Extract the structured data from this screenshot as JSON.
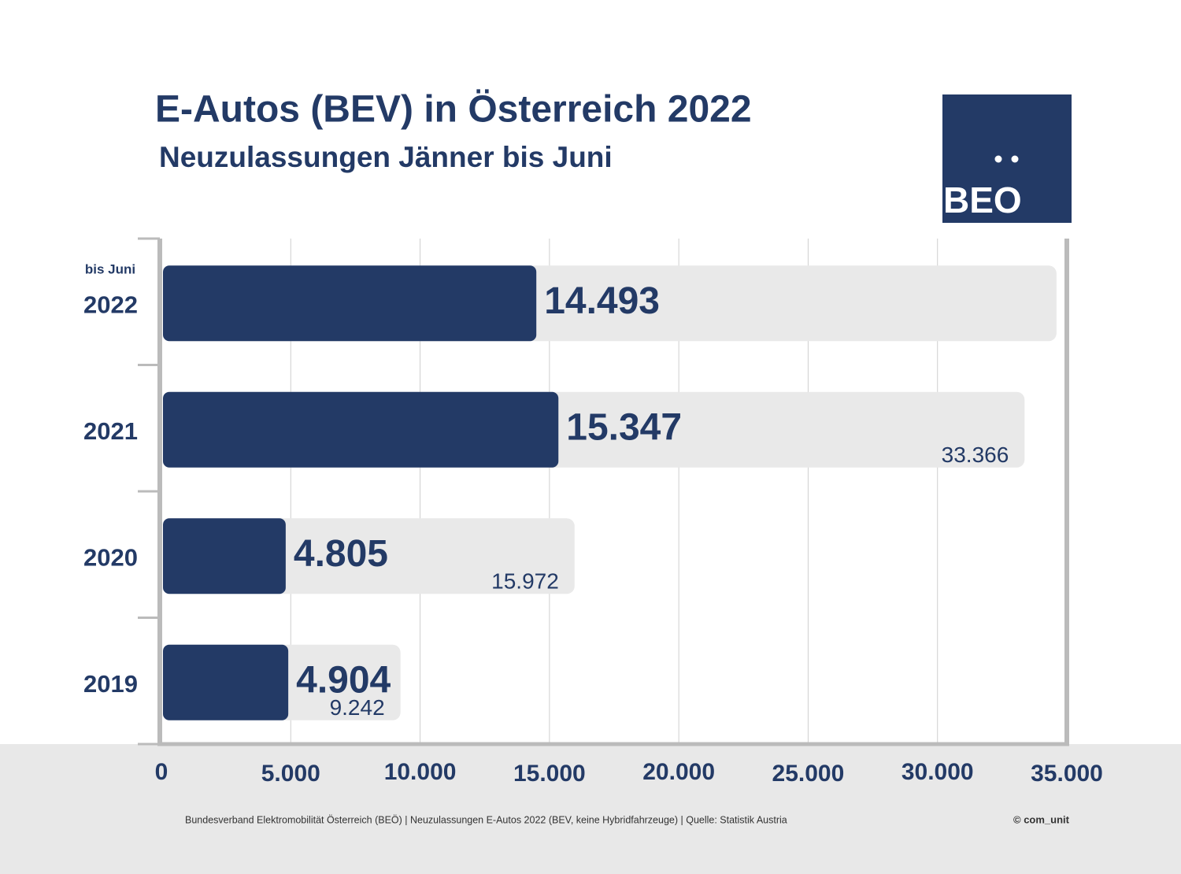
{
  "chart_data": {
    "type": "bar",
    "title": "E-Autos (BEV) in Österreich 2022",
    "subtitle": "Neuzulassungen Jänner bis Juni",
    "annotation": "bis Juni",
    "categories": [
      "2022",
      "2021",
      "2020",
      "2019"
    ],
    "series": [
      {
        "color": "#233a66",
        "values": [
          14493,
          15347,
          4805,
          4904
        ],
        "value_labels": [
          "14.493",
          "15.347",
          "4.805",
          "4.904"
        ]
      },
      {
        "color": "#e9e9e9",
        "values": [
          34600,
          33366,
          15972,
          9242
        ],
        "value_labels": [
          null,
          "33.366",
          "15.972",
          "9.242"
        ]
      }
    ],
    "xlim": [
      0,
      35000
    ],
    "xticks": [
      0,
      {
        "value": 5000,
        "label": "5.000"
      },
      {
        "value": 10000,
        "label": "10.000"
      },
      {
        "value": 15000,
        "label": "15.000"
      },
      {
        "value": 20000,
        "label": "20.000"
      },
      {
        "value": 25000,
        "label": "25.000"
      },
      {
        "value": 30000,
        "label": "30.000"
      },
      {
        "value": 35000,
        "label": "35.000"
      }
    ],
    "grid": true
  },
  "logo": "BEO",
  "footer": {
    "source": "Bundesverband Elektromobilität Österreich (BEÖ) | Neuzulassungen E-Autos 2022 (BEV, keine Hybridfahrzeuge) | Quelle: Statistik Austria",
    "credit": "© com_unit"
  }
}
